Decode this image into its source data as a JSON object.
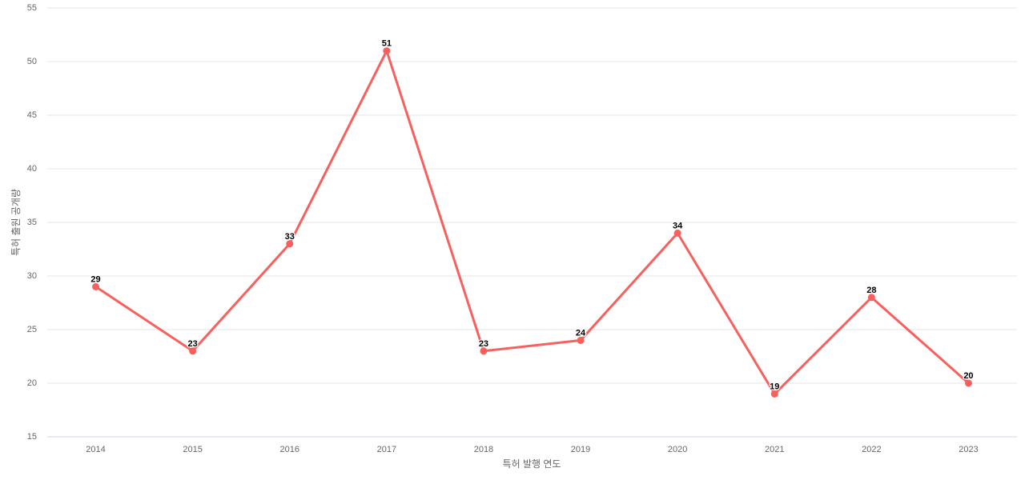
{
  "chart_data": {
    "type": "line",
    "title": "",
    "categories": [
      "2014",
      "2015",
      "2016",
      "2017",
      "2018",
      "2019",
      "2020",
      "2021",
      "2022",
      "2023"
    ],
    "values": [
      29,
      23,
      33,
      51,
      23,
      24,
      34,
      19,
      28,
      20
    ],
    "data_labels": [
      "29",
      "23",
      "33",
      "51",
      "23",
      "24",
      "34",
      "19",
      "28",
      "20"
    ],
    "xlabel": "특허 발행 연도",
    "ylabel": "특허 출원 공개량",
    "ylim": [
      15,
      55
    ],
    "yticks": [
      15,
      20,
      25,
      30,
      35,
      40,
      45,
      50,
      55
    ],
    "grid": "horizontal",
    "legend_position": "none",
    "data_labels_visible": true,
    "colors": {
      "line": "#f8605e",
      "marker": "#f8605e",
      "gridline": "#e6e6e6",
      "axis_line": "#ccd6eb",
      "tick_label": "#666666",
      "axis_title": "#666666",
      "data_label": "#000000",
      "background": "#ffffff"
    }
  }
}
